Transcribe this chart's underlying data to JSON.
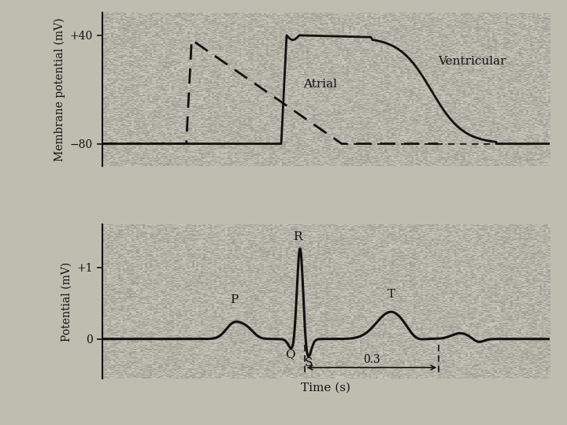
{
  "background_color": "#bebeb0",
  "fig_width": 7.2,
  "fig_height": 5.4,
  "dpi": 100,
  "top_panel": {
    "ylabel": "Membrane potential (mV)",
    "yticks": [
      -80,
      40
    ],
    "yticklabels": [
      "−80",
      "+40"
    ],
    "ylim": [
      -105,
      65
    ],
    "xlim": [
      0,
      1.0
    ],
    "ventricular_label": "Ventricular",
    "atrial_label": "Atrial"
  },
  "bottom_panel": {
    "ylabel": "Potential (mV)",
    "yticks": [
      0,
      1
    ],
    "yticklabels": [
      "0",
      "+1"
    ],
    "ylim": [
      -0.55,
      1.6
    ],
    "xlim": [
      0,
      1.0
    ],
    "xlabel": "Time (s)"
  },
  "line_color": "#111111",
  "text_color": "#111111",
  "font_family": "serif",
  "noise_seed": 42,
  "noise_alpha": 0.18
}
